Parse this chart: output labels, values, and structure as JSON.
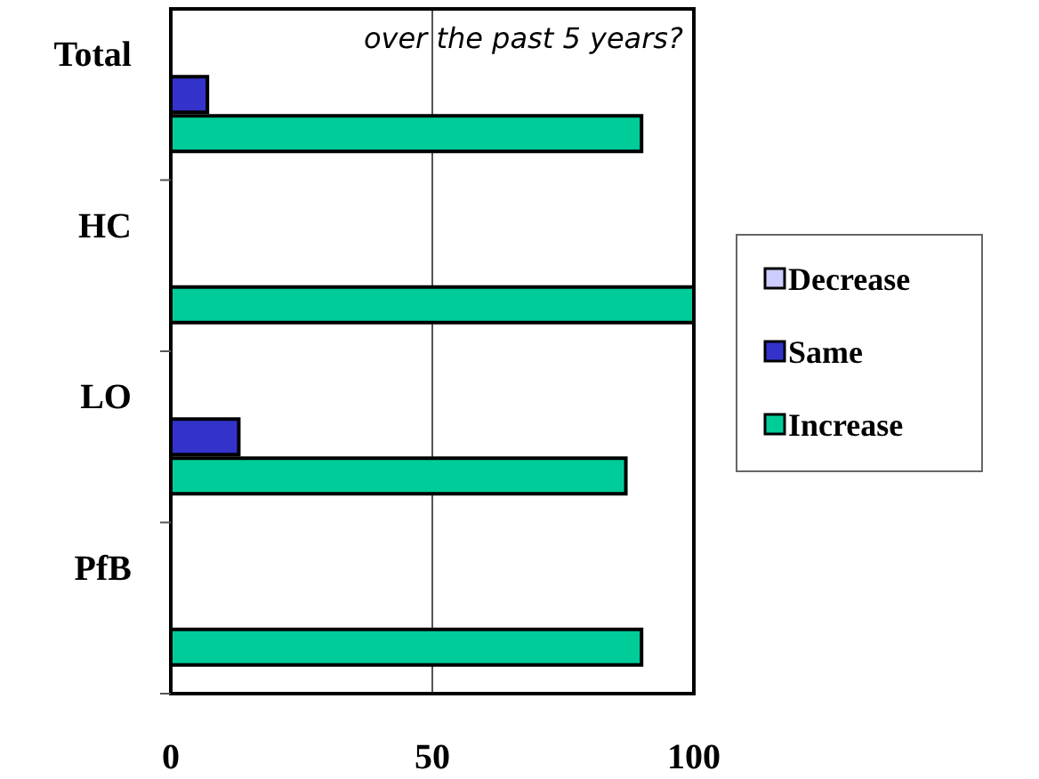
{
  "chart_data": {
    "type": "bar",
    "orientation": "horizontal",
    "title": "over the past 5 years?",
    "categories": [
      "Total",
      "HC",
      "LO",
      "PfB"
    ],
    "series": [
      {
        "name": "Decrease",
        "color": "#ccccff",
        "values": [
          0,
          0,
          0,
          0
        ]
      },
      {
        "name": "Same",
        "color": "#3333cc",
        "values": [
          7,
          0,
          13,
          0
        ]
      },
      {
        "name": "Increase",
        "color": "#00cc99",
        "values": [
          90,
          100,
          87,
          90
        ]
      }
    ],
    "xlim": [
      0,
      100
    ],
    "xticks": [
      0,
      50,
      100
    ],
    "grid": "x",
    "legend": "right"
  }
}
